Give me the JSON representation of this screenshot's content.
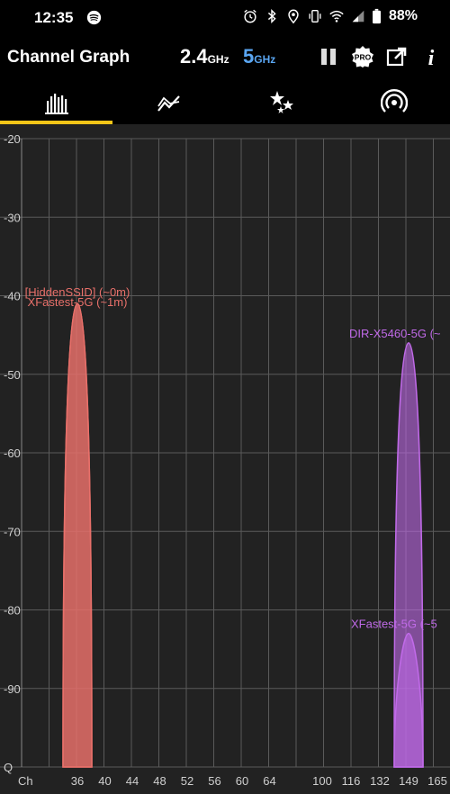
{
  "status_bar": {
    "time": "12:35",
    "battery": "88%",
    "icons": [
      "spotify-icon",
      "alarm-icon",
      "bluetooth-icon",
      "location-icon",
      "vibrate-icon",
      "wifi-icon",
      "signal-icon",
      "battery-icon"
    ]
  },
  "app_bar": {
    "title": "Channel Graph",
    "band_24": {
      "num": "2.4",
      "unit": "GHz"
    },
    "band_5": {
      "num": "5",
      "unit": "GHz"
    },
    "actions": [
      "pause-icon",
      "pro-badge-icon",
      "share-icon",
      "info-icon"
    ],
    "pro_label": "PRO",
    "info_label": "i"
  },
  "tabs": [
    {
      "name": "channel-graph",
      "icon": "bar-chart-icon",
      "selected": true
    },
    {
      "name": "time-graph",
      "icon": "line-chart-icon",
      "selected": false
    },
    {
      "name": "channel-rating",
      "icon": "stars-icon",
      "selected": false
    },
    {
      "name": "access-points",
      "icon": "signal-waves-icon",
      "selected": false
    }
  ],
  "colors": {
    "accent": "#f5c518",
    "band_5_color": "#5aa6f2",
    "network_red": "#e8706a",
    "network_purple": "#c06ae8"
  },
  "chart_data": {
    "type": "area",
    "ylabel_top": "",
    "y_ticks": [
      "-20",
      "-30",
      "-40",
      "-50",
      "-60",
      "-70",
      "-80",
      "-90",
      "Q"
    ],
    "y_values": [
      -20,
      -30,
      -40,
      -50,
      -60,
      -70,
      -80,
      -90,
      -100
    ],
    "x_label": "Ch",
    "x_ticks": [
      "36",
      "40",
      "44",
      "48",
      "52",
      "56",
      "60",
      "64",
      "100",
      "116",
      "132",
      "149",
      "165"
    ],
    "ylim": [
      -100,
      -20
    ],
    "networks": [
      {
        "label": "[HiddenSSID] (~0m)",
        "channel": "36",
        "signal": -41,
        "color": "#e8706a"
      },
      {
        "label": "XFastest-5G (~1m)",
        "channel": "36",
        "signal": -41,
        "color": "#e8706a"
      },
      {
        "label": "DIR-X5460-5G (~",
        "channel": "149",
        "signal": -46,
        "color": "#c06ae8"
      },
      {
        "label": "XFastest-5G (~5",
        "channel": "149",
        "signal": -83,
        "color": "#c06ae8"
      }
    ]
  }
}
